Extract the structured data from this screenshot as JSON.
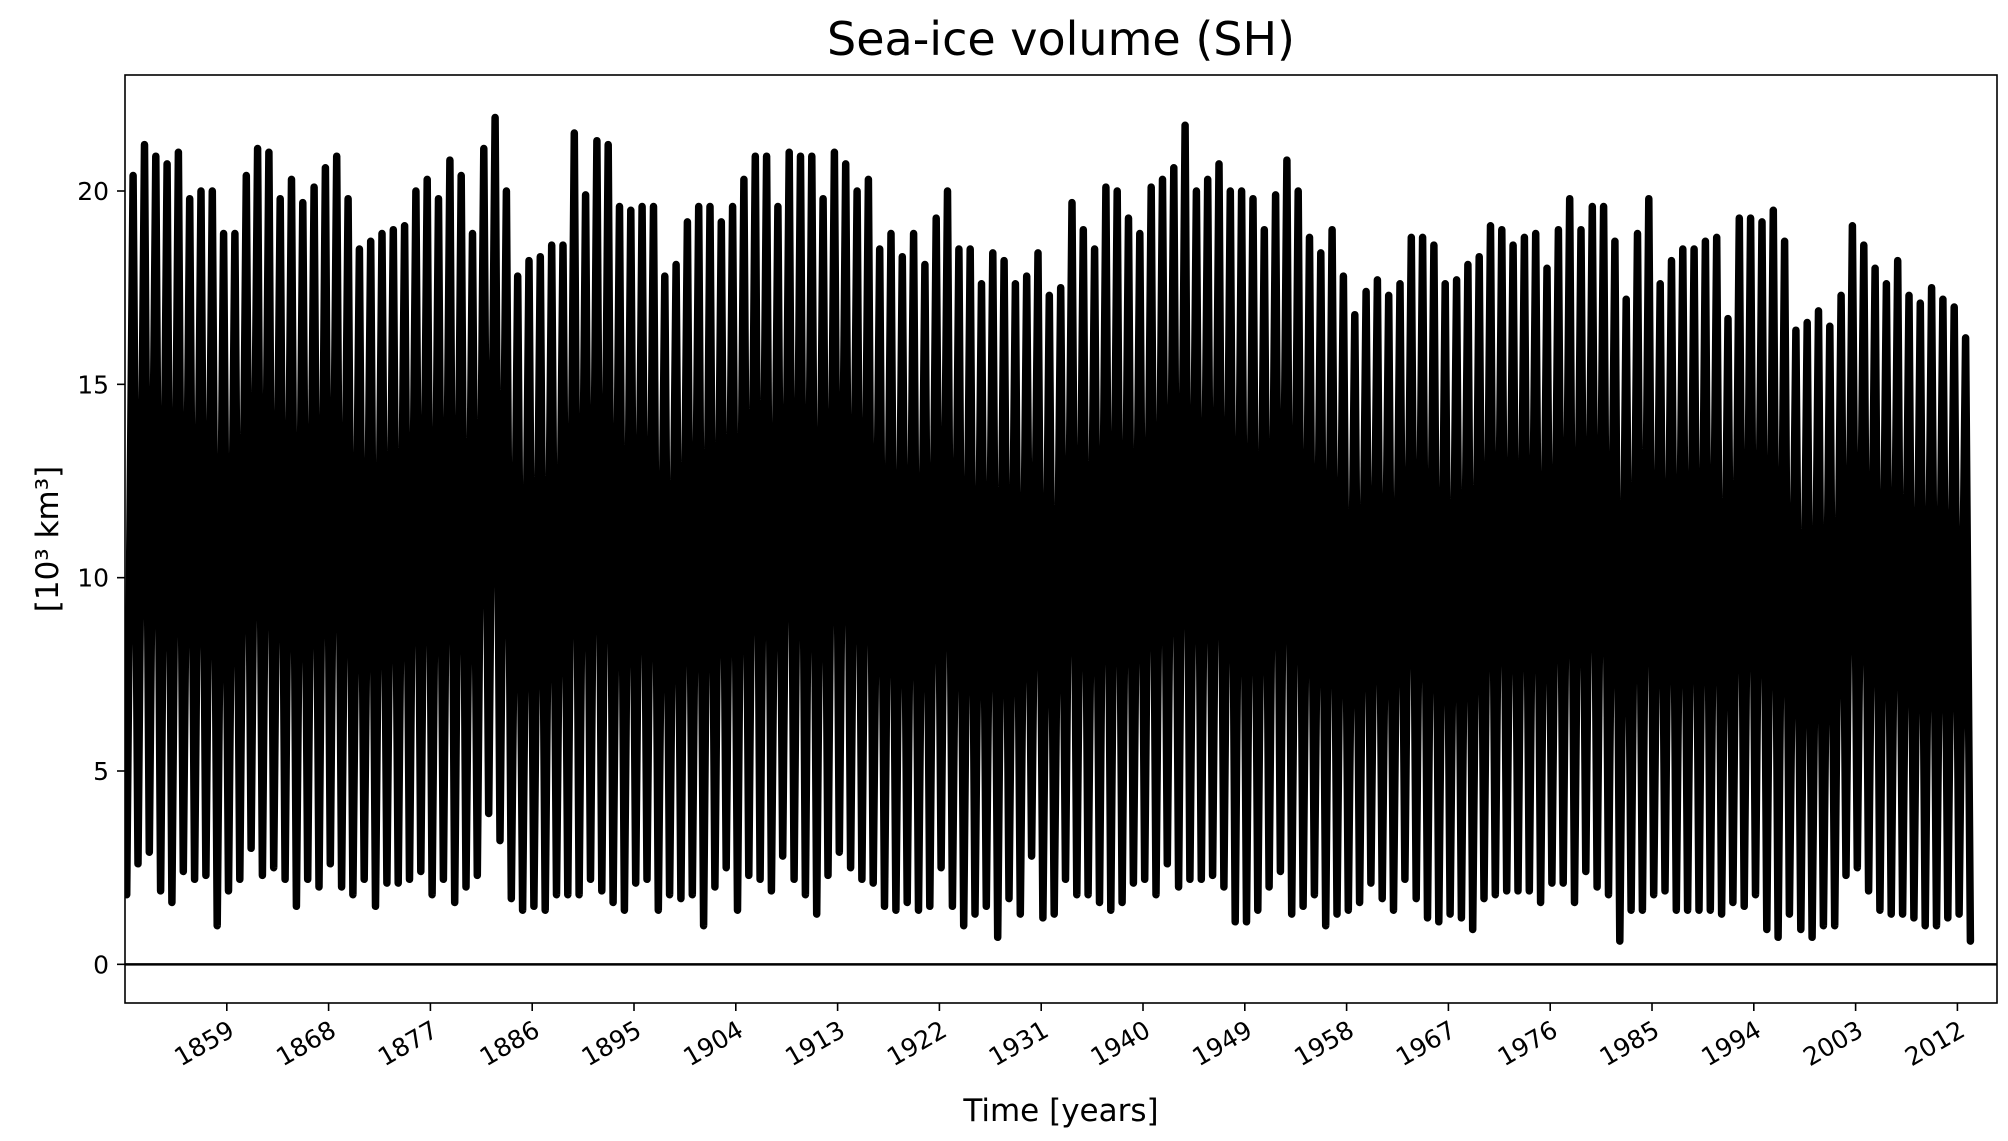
{
  "chart_data": {
    "type": "line",
    "title": "Sea-ice volume (SH)",
    "xlabel": "Time [years]",
    "ylabel": "[10³ km³]",
    "xlim": [
      1850.0,
      2015.5
    ],
    "ylim": [
      -1.0,
      23.0
    ],
    "y_ticks": [
      0,
      5,
      10,
      15,
      20
    ],
    "x_ticks": [
      1859,
      1868,
      1877,
      1886,
      1895,
      1904,
      1913,
      1922,
      1931,
      1940,
      1949,
      1958,
      1967,
      1976,
      1985,
      1994,
      2003,
      2012
    ],
    "zero_line": 0,
    "line_color": "#000000",
    "grid": false,
    "legend": "none",
    "series": [
      {
        "x": [
          1850,
          1851,
          1852,
          1853,
          1854,
          1855,
          1856,
          1857,
          1858,
          1859,
          1860,
          1861,
          1862,
          1863,
          1864,
          1865,
          1866,
          1867,
          1868,
          1869,
          1870,
          1871,
          1872,
          1873,
          1874,
          1875,
          1876,
          1877,
          1878,
          1879,
          1880,
          1881,
          1882,
          1883,
          1884,
          1885,
          1886,
          1887,
          1888,
          1889,
          1890,
          1891,
          1892,
          1893,
          1894,
          1895,
          1896,
          1897,
          1898,
          1899,
          1900,
          1901,
          1902,
          1903,
          1904,
          1905,
          1906,
          1907,
          1908,
          1909,
          1910,
          1911,
          1912,
          1913,
          1914,
          1915,
          1916,
          1917,
          1918,
          1919,
          1920,
          1921,
          1922,
          1923,
          1924,
          1925,
          1926,
          1927,
          1928,
          1929,
          1930,
          1931,
          1932,
          1933,
          1934,
          1935,
          1936,
          1937,
          1938,
          1939,
          1940,
          1941,
          1942,
          1943,
          1944,
          1945,
          1946,
          1947,
          1948,
          1949,
          1950,
          1951,
          1952,
          1953,
          1954,
          1955,
          1956,
          1957,
          1958,
          1959,
          1960,
          1961,
          1962,
          1963,
          1964,
          1965,
          1966,
          1967,
          1968,
          1969,
          1970,
          1971,
          1972,
          1973,
          1974,
          1975,
          1976,
          1977,
          1978,
          1979,
          1980,
          1981,
          1982,
          1983,
          1984,
          1985,
          1986,
          1987,
          1988,
          1989,
          1990,
          1991,
          1992,
          1993,
          1994,
          1995,
          1996,
          1997,
          1998,
          1999,
          2000,
          2001,
          2002,
          2003,
          2004,
          2005,
          2006,
          2007,
          2008,
          2009,
          2010,
          2011,
          2012,
          2013,
          2014,
          2015
        ],
        "annual_max": [
          20.4,
          21.2,
          20.9,
          20.7,
          21.0,
          19.8,
          20.0,
          20.0,
          18.9,
          18.9,
          20.4,
          21.1,
          21.0,
          19.8,
          20.3,
          19.7,
          20.1,
          20.6,
          20.9,
          19.8,
          18.5,
          18.7,
          18.9,
          19.0,
          19.1,
          20.0,
          20.3,
          19.8,
          20.8,
          20.4,
          18.9,
          21.1,
          21.9,
          20.0,
          17.8,
          18.2,
          18.3,
          18.6,
          18.6,
          21.5,
          19.9,
          21.3,
          21.2,
          19.6,
          19.5,
          19.6,
          19.6,
          17.8,
          18.1,
          19.2,
          19.6,
          19.6,
          19.2,
          19.6,
          20.3,
          20.9,
          20.9,
          19.6,
          21.0,
          20.9,
          20.9,
          19.8,
          21.0,
          20.7,
          20.0,
          20.3,
          18.5,
          18.9,
          18.3,
          18.9,
          18.1,
          19.3,
          20.0,
          18.5,
          18.5,
          17.6,
          18.4,
          18.2,
          17.6,
          17.8,
          18.4,
          17.3,
          17.5,
          19.7,
          19.0,
          18.5,
          20.1,
          20.0,
          19.3,
          18.9,
          20.1,
          20.3,
          20.6,
          21.7,
          20.0,
          20.3,
          20.7,
          20.0,
          20.0,
          19.8,
          19.0,
          19.9,
          20.8,
          20.0,
          18.8,
          18.4,
          19.0,
          17.8,
          16.8,
          17.4,
          17.7,
          17.3,
          17.6,
          18.8,
          18.8,
          18.6,
          17.6,
          17.7,
          18.1,
          18.3,
          19.1,
          19.0,
          18.6,
          18.8,
          18.9,
          18.0,
          19.0,
          19.8,
          19.0,
          19.6,
          19.6,
          18.7,
          17.2,
          18.9,
          19.8,
          17.6,
          18.2,
          18.5,
          18.5,
          18.7,
          18.8,
          16.7,
          19.3,
          19.3,
          19.2,
          19.5,
          18.7,
          16.4,
          16.6,
          16.9,
          16.5,
          17.3,
          19.1,
          18.6,
          18.0,
          17.6,
          18.2,
          17.3,
          17.1,
          17.5,
          17.2,
          17.0,
          16.2
        ],
        "annual_min": [
          1.8,
          2.6,
          2.9,
          1.9,
          1.6,
          2.4,
          2.2,
          2.3,
          1.0,
          1.9,
          2.2,
          3.0,
          2.3,
          2.5,
          2.2,
          1.5,
          2.2,
          2.0,
          2.6,
          2.0,
          1.8,
          2.2,
          1.5,
          2.1,
          2.1,
          2.2,
          2.4,
          1.8,
          2.2,
          1.6,
          2.0,
          2.3,
          3.9,
          3.2,
          1.7,
          1.4,
          1.5,
          1.4,
          1.8,
          1.8,
          1.8,
          2.2,
          1.9,
          1.6,
          1.4,
          2.1,
          2.2,
          1.4,
          1.8,
          1.7,
          1.8,
          1.0,
          2.0,
          2.5,
          1.4,
          2.3,
          2.2,
          1.9,
          2.8,
          2.2,
          1.8,
          1.3,
          2.3,
          2.9,
          2.5,
          2.2,
          2.1,
          1.5,
          1.4,
          1.6,
          1.4,
          1.5,
          2.5,
          1.5,
          1.0,
          1.3,
          1.5,
          0.7,
          1.7,
          1.3,
          2.8,
          1.2,
          1.3,
          2.2,
          1.8,
          1.8,
          1.6,
          1.4,
          1.6,
          2.1,
          2.2,
          1.8,
          2.6,
          2.0,
          2.2,
          2.2,
          2.3,
          2.0,
          1.1,
          1.1,
          1.4,
          2.0,
          2.4,
          1.3,
          1.5,
          1.8,
          1.0,
          1.3,
          1.4,
          1.6,
          2.1,
          1.7,
          1.4,
          2.2,
          1.7,
          1.2,
          1.1,
          1.3,
          1.2,
          0.9,
          1.7,
          1.8,
          1.9,
          1.9,
          1.9,
          1.6,
          2.1,
          2.1,
          1.6,
          2.4,
          2.0,
          1.8,
          0.6,
          1.4,
          1.4,
          1.8,
          1.9,
          1.4,
          1.4,
          1.4,
          1.4,
          1.3,
          1.6,
          1.5,
          1.8,
          0.9,
          0.7,
          1.3,
          0.9,
          0.7,
          1.0,
          1.0,
          2.3,
          2.5,
          1.9,
          1.4,
          1.3,
          1.3,
          1.2,
          1.0,
          1.0,
          1.2,
          1.3,
          0.6,
          1.6,
          1.1
        ]
      }
    ]
  }
}
